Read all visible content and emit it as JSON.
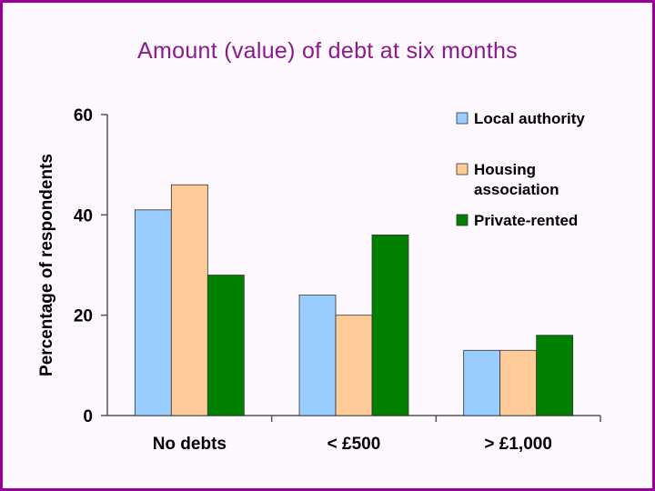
{
  "title": "Amount (value) of debt at six months",
  "chart_data": {
    "type": "bar",
    "title": "Amount (value) of debt at six months",
    "xlabel": "",
    "ylabel": "Percentage of respondents",
    "categories": [
      "No debts",
      "< £500",
      "> £1,000"
    ],
    "ylim": [
      0,
      60
    ],
    "yticks": [
      0,
      20,
      40,
      60
    ],
    "grid": false,
    "legend_position": "top-right",
    "series": [
      {
        "name": "Local authority",
        "color": "#99ccff",
        "values": [
          41,
          24,
          13
        ]
      },
      {
        "name": "Housing association",
        "color": "#ffcc99",
        "values": [
          46,
          20,
          13
        ]
      },
      {
        "name": "Private-rented",
        "color": "#008000",
        "values": [
          28,
          36,
          16
        ]
      }
    ]
  }
}
